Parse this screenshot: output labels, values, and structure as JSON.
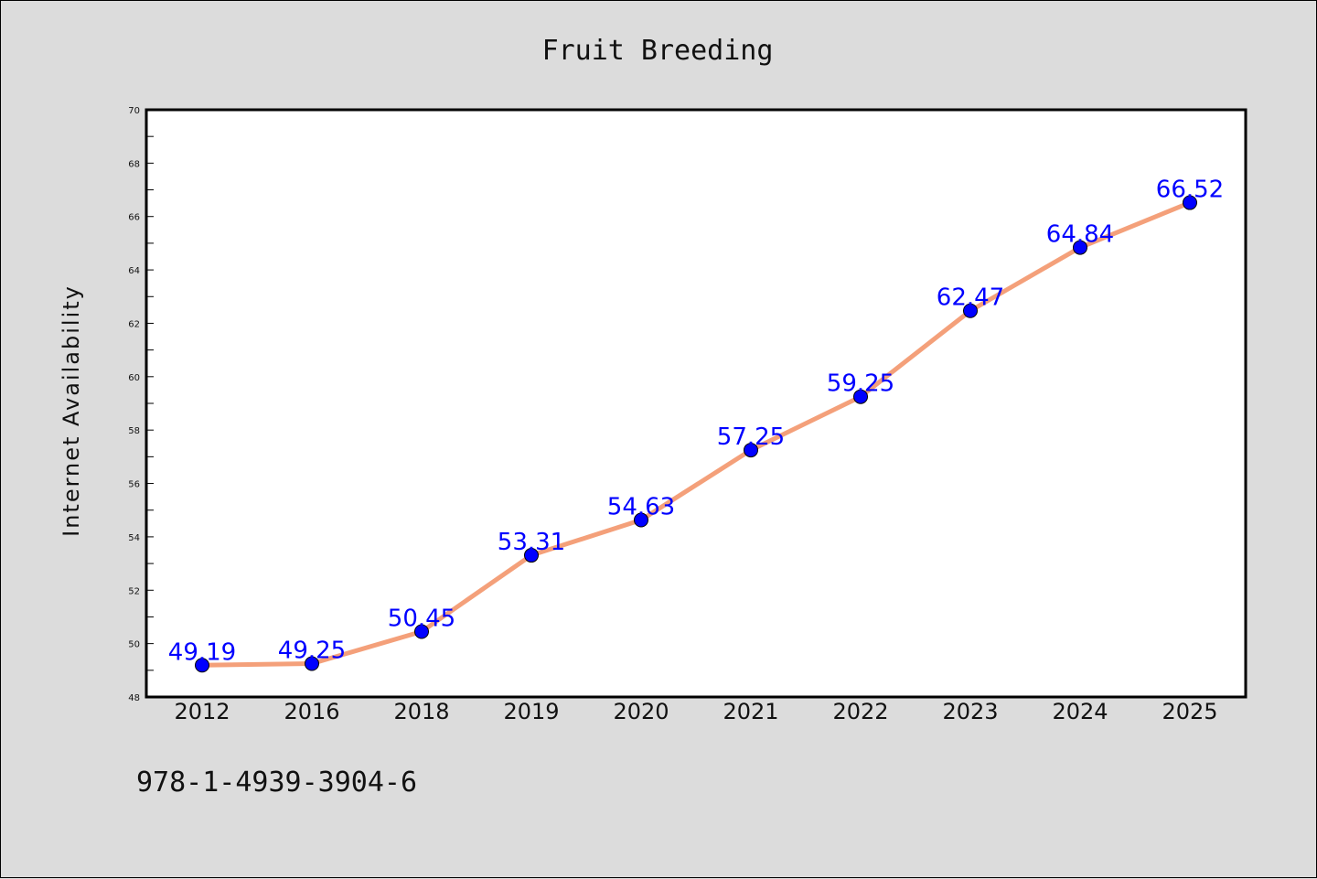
{
  "chart_data": {
    "type": "line",
    "title": "Fruit Breeding",
    "xlabel": "",
    "ylabel": "Internet Availability",
    "categories": [
      "2012",
      "2016",
      "2018",
      "2019",
      "2020",
      "2021",
      "2022",
      "2023",
      "2024",
      "2025"
    ],
    "series": [
      {
        "values": [
          49.19,
          49.25,
          50.45,
          53.31,
          54.63,
          57.25,
          59.25,
          62.47,
          64.84,
          66.52
        ],
        "labels": [
          "49.19",
          "49.25",
          "50.45",
          "53.31",
          "54.63",
          "57.25",
          "59.25",
          "62.47",
          "64.84",
          "66.52"
        ],
        "line_color": "#f4a07a",
        "marker_color": "#0000ff"
      }
    ],
    "ylim": [
      48,
      70
    ],
    "yticks": [
      "48",
      "50",
      "52",
      "54",
      "56",
      "58",
      "60",
      "62",
      "64",
      "66",
      "68",
      "70"
    ],
    "grid": false,
    "legend": "none"
  },
  "footer": {
    "isbn": "978-1-4939-3904-6"
  },
  "colors": {
    "background": "#dcdcdc",
    "plot_area": "#ffffff"
  }
}
